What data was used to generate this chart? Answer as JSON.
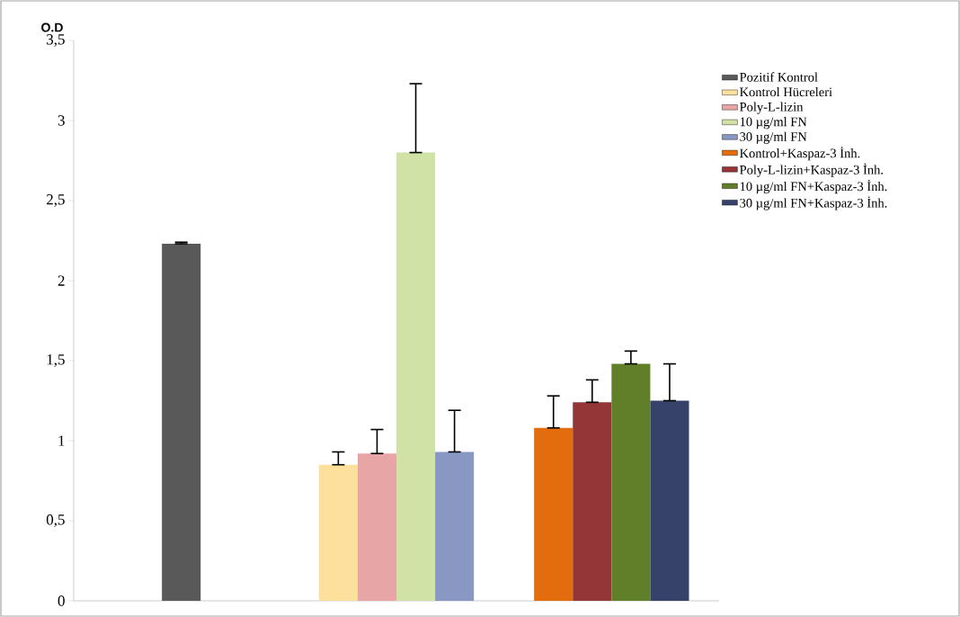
{
  "chart_data": {
    "type": "bar",
    "ylabel": "O.D",
    "categories": [
      null,
      null,
      null
    ],
    "series": [
      {
        "name": "Pozitif Kontrol",
        "color": "#595959",
        "values": [
          2.23,
          null,
          null
        ],
        "errors": [
          [
            2.23,
            2.24
          ],
          null,
          null
        ]
      },
      {
        "name": "Kontrol Hücreleri",
        "color": "#fde09c",
        "values": [
          null,
          0.85,
          null
        ],
        "errors": [
          null,
          [
            0.85,
            0.93
          ],
          null
        ]
      },
      {
        "name": "Poly-L-lizin",
        "color": "#e8a5a6",
        "values": [
          null,
          0.92,
          null
        ],
        "errors": [
          null,
          [
            0.92,
            1.07
          ],
          null
        ]
      },
      {
        "name": "10 µg/ml FN",
        "color": "#d1e2a6",
        "values": [
          null,
          2.8,
          null
        ],
        "errors": [
          null,
          [
            2.8,
            3.23
          ],
          null
        ]
      },
      {
        "name": "30 µg/ml FN",
        "color": "#8898c2",
        "values": [
          null,
          0.93,
          null
        ],
        "errors": [
          null,
          [
            0.93,
            1.19
          ],
          null
        ]
      },
      {
        "name": "Kontrol+Kaspaz-3 İnh.",
        "color": "#e36c0d",
        "values": [
          null,
          null,
          1.08
        ],
        "errors": [
          null,
          null,
          [
            1.08,
            1.28
          ]
        ]
      },
      {
        "name": "Poly-L-lizin+Kaspaz-3 İnh.",
        "color": "#943637",
        "values": [
          null,
          null,
          1.24
        ],
        "errors": [
          null,
          null,
          [
            1.24,
            1.38
          ]
        ]
      },
      {
        "name": "10 µg/ml FN+Kaspaz-3 İnh.",
        "color": "#617f28",
        "values": [
          null,
          null,
          1.48
        ],
        "errors": [
          null,
          null,
          [
            1.48,
            1.56
          ]
        ]
      },
      {
        "name": "30 µg/ml FN+Kaspaz-3 İnh.",
        "color": "#37426a",
        "values": [
          null,
          null,
          1.25
        ],
        "errors": [
          null,
          null,
          [
            1.25,
            1.48
          ]
        ]
      }
    ],
    "ylim": [
      0,
      3.5
    ],
    "yticks": [
      0,
      {
        "value": 0.5,
        "label": "0,5"
      },
      1,
      {
        "value": 1.5,
        "label": "1,5"
      },
      2,
      {
        "value": 2.5,
        "label": "2,5"
      },
      3,
      {
        "value": 3.5,
        "label": "3,5"
      }
    ],
    "grid": false,
    "legend": "right"
  }
}
